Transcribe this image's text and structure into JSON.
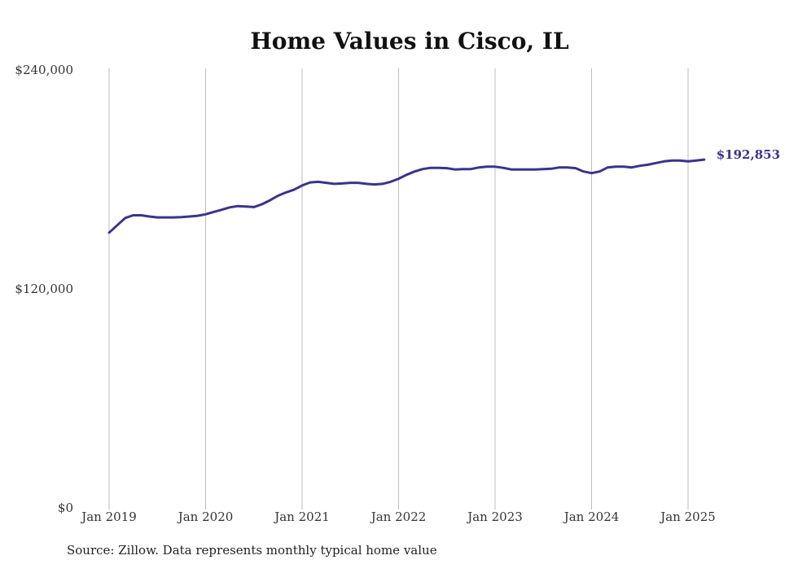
{
  "colors": {
    "line": "#3a3391",
    "grid": "#bdbdbd",
    "text": "#333333"
  },
  "chart_data": {
    "type": "line",
    "title": "Home Values in Cisco, IL",
    "xlabel": "",
    "ylabel": "",
    "ylim": [
      0,
      240000
    ],
    "y_ticks": [
      {
        "value": 0,
        "label": "$0"
      },
      {
        "value": 120000,
        "label": "$120,000"
      },
      {
        "value": 240000,
        "label": "$240,000"
      }
    ],
    "x_ticks": [
      {
        "value": "2019-01",
        "label": "Jan 2019"
      },
      {
        "value": "2020-01",
        "label": "Jan 2020"
      },
      {
        "value": "2021-01",
        "label": "Jan 2021"
      },
      {
        "value": "2022-01",
        "label": "Jan 2022"
      },
      {
        "value": "2023-01",
        "label": "Jan 2023"
      },
      {
        "value": "2024-01",
        "label": "Jan 2024"
      },
      {
        "value": "2025-01",
        "label": "Jan 2025"
      }
    ],
    "grid": "vertical",
    "series": [
      {
        "points": [
          [
            "2019-01",
            150000
          ],
          [
            "2019-02",
            154000
          ],
          [
            "2019-03",
            158000
          ],
          [
            "2019-04",
            159500
          ],
          [
            "2019-05",
            159500
          ],
          [
            "2019-06",
            158800
          ],
          [
            "2019-07",
            158300
          ],
          [
            "2019-08",
            158300
          ],
          [
            "2019-09",
            158300
          ],
          [
            "2019-10",
            158500
          ],
          [
            "2019-11",
            158800
          ],
          [
            "2019-12",
            159200
          ],
          [
            "2020-01",
            160000
          ],
          [
            "2020-02",
            161300
          ],
          [
            "2020-03",
            162500
          ],
          [
            "2020-04",
            163800
          ],
          [
            "2020-05",
            164500
          ],
          [
            "2020-06",
            164300
          ],
          [
            "2020-07",
            164000
          ],
          [
            "2020-08",
            165500
          ],
          [
            "2020-09",
            167700
          ],
          [
            "2020-10",
            170200
          ],
          [
            "2020-11",
            172000
          ],
          [
            "2020-12",
            173500
          ],
          [
            "2021-01",
            175800
          ],
          [
            "2021-02",
            177500
          ],
          [
            "2021-03",
            177800
          ],
          [
            "2021-04",
            177300
          ],
          [
            "2021-05",
            176700
          ],
          [
            "2021-06",
            176900
          ],
          [
            "2021-07",
            177300
          ],
          [
            "2021-08",
            177300
          ],
          [
            "2021-09",
            176700
          ],
          [
            "2021-10",
            176400
          ],
          [
            "2021-11",
            176700
          ],
          [
            "2021-12",
            177800
          ],
          [
            "2022-01",
            179500
          ],
          [
            "2022-02",
            181700
          ],
          [
            "2022-03",
            183500
          ],
          [
            "2022-04",
            184800
          ],
          [
            "2022-05",
            185500
          ],
          [
            "2022-06",
            185500
          ],
          [
            "2022-07",
            185300
          ],
          [
            "2022-08",
            184600
          ],
          [
            "2022-09",
            184800
          ],
          [
            "2022-10",
            184800
          ],
          [
            "2022-11",
            185700
          ],
          [
            "2022-12",
            186100
          ],
          [
            "2023-01",
            186100
          ],
          [
            "2023-02",
            185500
          ],
          [
            "2023-03",
            184600
          ],
          [
            "2023-04",
            184600
          ],
          [
            "2023-05",
            184600
          ],
          [
            "2023-06",
            184600
          ],
          [
            "2023-07",
            184800
          ],
          [
            "2023-08",
            185000
          ],
          [
            "2023-09",
            185700
          ],
          [
            "2023-10",
            185700
          ],
          [
            "2023-11",
            185300
          ],
          [
            "2023-12",
            183500
          ],
          [
            "2024-01",
            182600
          ],
          [
            "2024-02",
            183500
          ],
          [
            "2024-03",
            185700
          ],
          [
            "2024-04",
            186100
          ],
          [
            "2024-05",
            186100
          ],
          [
            "2024-06",
            185700
          ],
          [
            "2024-07",
            186600
          ],
          [
            "2024-08",
            187200
          ],
          [
            "2024-09",
            188100
          ],
          [
            "2024-10",
            189000
          ],
          [
            "2024-11",
            189500
          ],
          [
            "2024-12",
            189500
          ],
          [
            "2025-01",
            189000
          ],
          [
            "2025-02",
            189500
          ],
          [
            "2025-03",
            190000
          ]
        ]
      }
    ],
    "end_label": "$192,853",
    "source": "Source: Zillow. Data represents monthly typical home value"
  }
}
